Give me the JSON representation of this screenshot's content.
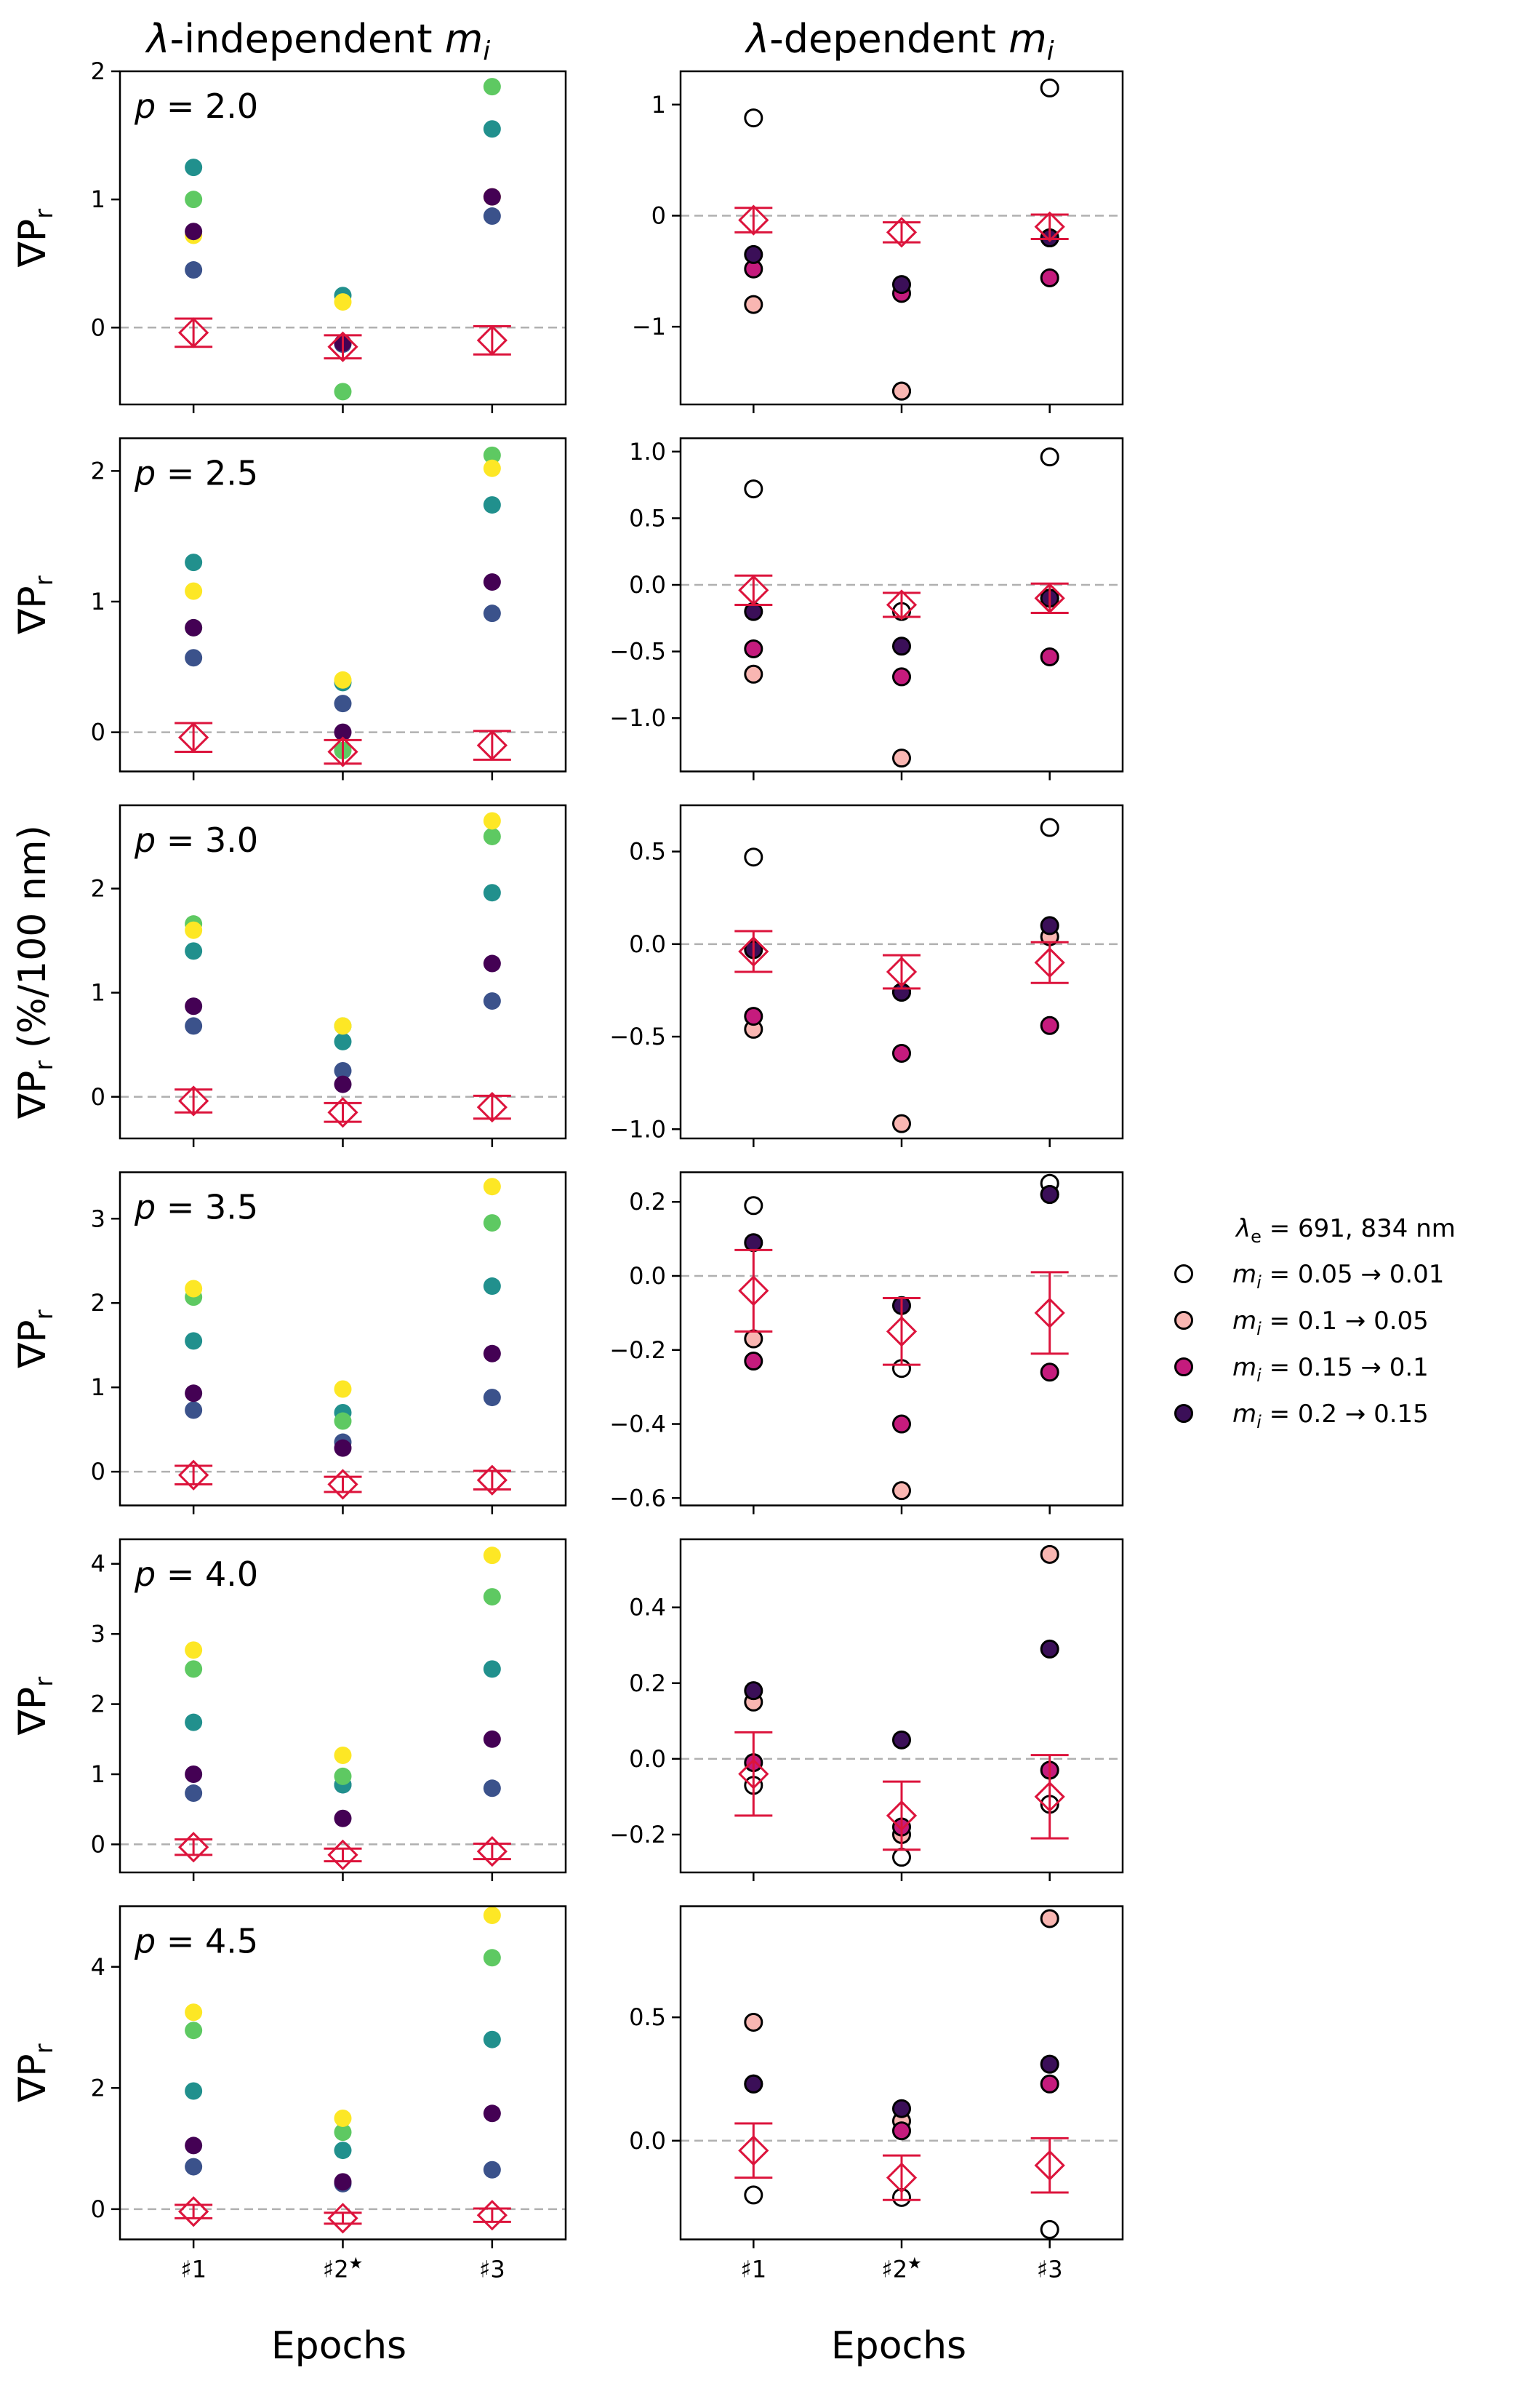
{
  "column_titles": {
    "left": {
      "main": "-independent ",
      "sym": "λ",
      "mi": "m",
      "sub": "i"
    },
    "right": {
      "main": "-dependent ",
      "sym": "λ",
      "mi": "m",
      "sub": "i"
    }
  },
  "ylabel": {
    "short": "∇P",
    "sub": "r",
    "mid_suffix": " (%/100 nm)"
  },
  "xlabel": "Epochs",
  "epochs": [
    "♯1",
    "♯2",
    "♯3"
  ],
  "epoch_star": "★",
  "legend": {
    "title": "λ = 691, 834 nm",
    "title_parts": {
      "sym": "λ",
      "sub": "e",
      "rest": " = 691, 834 nm"
    },
    "entries": [
      {
        "label": "= 0.05 → 0.01",
        "color": "#ffffff"
      },
      {
        "label": "= 0.1 → 0.05",
        "color": "#f9b6b2"
      },
      {
        "label": "= 0.15 → 0.1",
        "color": "#c51b7d"
      },
      {
        "label": "= 0.2 → 0.15",
        "color": "#3b0f58"
      }
    ]
  },
  "colors": {
    "viridis": [
      "#3b528b",
      "#21908d",
      "#5ec962",
      "#fde725",
      "#440154"
    ],
    "observed": "#dc143c",
    "zero_line": "#b0b0b0"
  },
  "chart_data": {
    "type": "scatter",
    "observed": {
      "values": [
        -0.04,
        -0.15,
        -0.1
      ],
      "errors": [
        0.11,
        0.09,
        0.11
      ]
    },
    "panels": [
      {
        "p": "p = 2.0",
        "left": {
          "ylim": [
            -0.6,
            2.0
          ],
          "yticks": [
            0,
            1,
            2
          ],
          "points": [
            [
              0.45,
              1.25,
              1.0,
              0.72,
              0.75
            ],
            [
              -0.13,
              0.25,
              -0.5,
              0.2,
              -0.12
            ],
            [
              0.87,
              1.55,
              1.88,
              1.02,
              1.02
            ]
          ]
        },
        "right": {
          "ylim": [
            -1.7,
            1.3
          ],
          "yticks": [
            -1,
            0,
            1
          ],
          "points": [
            [
              0.88,
              -0.8,
              -0.48,
              -0.35
            ],
            [
              -1.58,
              -1.58,
              -0.7,
              -0.62
            ],
            [
              1.15,
              -0.2,
              -0.56,
              -0.2
            ]
          ]
        }
      },
      {
        "p": "p = 2.5",
        "left": {
          "ylim": [
            -0.3,
            2.25
          ],
          "yticks": [
            0,
            1,
            2
          ],
          "points": [
            [
              0.57,
              1.3,
              0.8,
              1.08,
              0.8
            ],
            [
              0.22,
              0.38,
              -0.14,
              0.4,
              0.0
            ],
            [
              0.91,
              1.74,
              2.12,
              2.02,
              1.15
            ]
          ]
        },
        "right": {
          "ylim": [
            -1.4,
            1.1
          ],
          "yticks": [
            -1.0,
            -0.5,
            0.0,
            0.5,
            1.0
          ],
          "points": [
            [
              0.72,
              -0.67,
              -0.48,
              -0.2
            ],
            [
              -0.2,
              -1.3,
              -0.69,
              -0.46
            ],
            [
              0.96,
              -0.1,
              -0.54,
              -0.1
            ]
          ]
        }
      },
      {
        "p": "p = 3.0",
        "left": {
          "ylim": [
            -0.4,
            2.8
          ],
          "yticks": [
            0,
            1,
            2
          ],
          "points": [
            [
              0.68,
              1.4,
              1.66,
              1.6,
              0.87
            ],
            [
              0.25,
              0.53,
              0.68,
              0.68,
              0.12
            ],
            [
              0.92,
              1.96,
              2.5,
              2.65,
              1.28
            ]
          ]
        },
        "right": {
          "ylim": [
            -1.05,
            0.75
          ],
          "yticks": [
            -1.0,
            -0.5,
            0.0,
            0.5
          ],
          "points": [
            [
              0.47,
              -0.46,
              -0.39,
              -0.03
            ],
            [
              -0.26,
              -0.97,
              -0.59,
              -0.26
            ],
            [
              0.63,
              0.04,
              -0.44,
              0.1
            ]
          ]
        }
      },
      {
        "p": "p = 3.5",
        "left": {
          "ylim": [
            -0.4,
            3.55
          ],
          "yticks": [
            0,
            1,
            2,
            3
          ],
          "points": [
            [
              0.73,
              1.55,
              2.07,
              2.17,
              0.93
            ],
            [
              0.35,
              0.7,
              0.6,
              0.98,
              0.28
            ],
            [
              0.88,
              2.2,
              2.95,
              3.38,
              1.4
            ]
          ]
        },
        "right": {
          "ylim": [
            -0.62,
            0.28
          ],
          "yticks": [
            -0.6,
            -0.4,
            -0.2,
            0.0,
            0.2
          ],
          "points": [
            [
              0.19,
              -0.17,
              -0.23,
              0.09
            ],
            [
              -0.25,
              -0.58,
              -0.4,
              -0.08
            ],
            [
              0.25,
              0.22,
              -0.26,
              0.22
            ]
          ]
        }
      },
      {
        "p": "p = 4.0",
        "left": {
          "ylim": [
            -0.4,
            4.35
          ],
          "yticks": [
            0,
            1,
            2,
            3,
            4
          ],
          "points": [
            [
              0.73,
              1.74,
              2.5,
              2.77,
              1.0
            ],
            [
              0.85,
              0.85,
              0.97,
              1.27,
              0.37
            ],
            [
              0.8,
              2.5,
              3.53,
              4.12,
              1.5
            ]
          ]
        },
        "right": {
          "ylim": [
            -0.3,
            0.58
          ],
          "yticks": [
            -0.2,
            0.0,
            0.2,
            0.4
          ],
          "points": [
            [
              -0.07,
              0.15,
              -0.01,
              0.18
            ],
            [
              -0.26,
              -0.2,
              -0.18,
              0.05
            ],
            [
              -0.12,
              0.54,
              -0.03,
              0.29
            ]
          ]
        }
      },
      {
        "p": "p = 4.5",
        "left": {
          "ylim": [
            -0.5,
            5.0
          ],
          "yticks": [
            0,
            2,
            4
          ],
          "points": [
            [
              0.7,
              1.95,
              2.95,
              3.25,
              1.05
            ],
            [
              0.42,
              0.97,
              1.27,
              1.5,
              0.45
            ],
            [
              0.65,
              2.8,
              4.15,
              4.85,
              1.58
            ]
          ]
        },
        "right": {
          "ylim": [
            -0.4,
            0.95
          ],
          "yticks": [
            0.0,
            0.5
          ],
          "points": [
            [
              -0.22,
              0.48,
              0.23,
              0.23
            ],
            [
              -0.23,
              0.08,
              0.04,
              0.13
            ],
            [
              -0.36,
              0.9,
              0.23,
              0.31
            ]
          ]
        }
      }
    ]
  }
}
